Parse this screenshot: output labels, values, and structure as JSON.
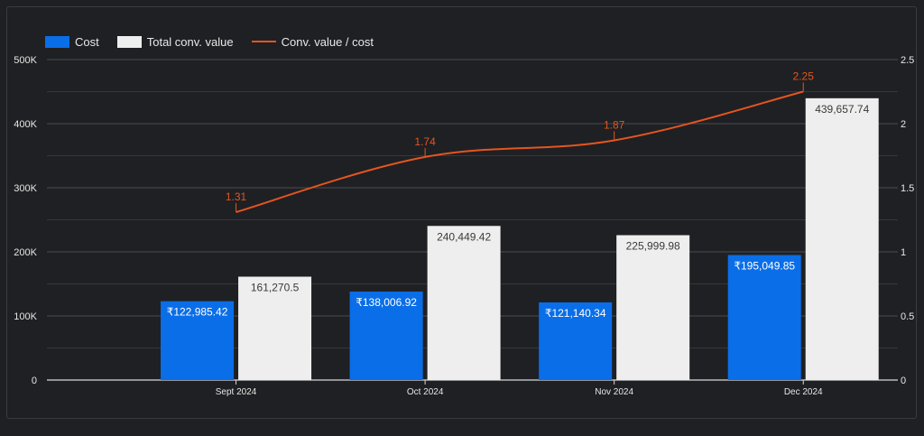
{
  "legend": [
    {
      "label": "Cost",
      "kind": "box",
      "color": "#0a6ee8"
    },
    {
      "label": "Total conv. value",
      "kind": "box",
      "color": "#eeeeee"
    },
    {
      "label": "Conv. value / cost",
      "kind": "line",
      "color": "#e4551f"
    }
  ],
  "chart_data": {
    "type": "bar",
    "categories": [
      "Sept 2024",
      "Oct 2024",
      "Nov 2024",
      "Dec 2024"
    ],
    "series": [
      {
        "name": "Cost",
        "kind": "bar",
        "axis": "left",
        "color": "#0a6ee8",
        "values": [
          122985.42,
          138006.92,
          121140.34,
          195049.85
        ],
        "labels": [
          "₹122,985.42",
          "₹138,006.92",
          "₹121,140.34",
          "₹195,049.85"
        ]
      },
      {
        "name": "Total conv. value",
        "kind": "bar",
        "axis": "left",
        "color": "#eeeeee",
        "values": [
          161270.5,
          240449.42,
          225999.98,
          439657.74
        ],
        "labels": [
          "161,270.5",
          "240,449.42",
          "225,999.98",
          "439,657.74"
        ]
      },
      {
        "name": "Conv. value / cost",
        "kind": "line",
        "axis": "right",
        "color": "#e4551f",
        "values": [
          1.31,
          1.74,
          1.87,
          2.25
        ],
        "labels": [
          "1.31",
          "1.74",
          "1.87",
          "2.25"
        ]
      }
    ],
    "yleft": {
      "ylim": [
        0,
        500000
      ],
      "ticks": [
        0,
        100000,
        200000,
        300000,
        400000,
        500000
      ],
      "tick_labels": [
        "0",
        "100K",
        "200K",
        "300K",
        "400K",
        "500K"
      ]
    },
    "yright": {
      "ylim": [
        0,
        2.5
      ],
      "ticks": [
        0,
        0.5,
        1,
        1.5,
        2,
        2.5
      ],
      "tick_labels": [
        "0",
        "0.5",
        "1",
        "1.5",
        "2",
        "2.5"
      ]
    },
    "grid": true,
    "legend_position": "top-left"
  }
}
